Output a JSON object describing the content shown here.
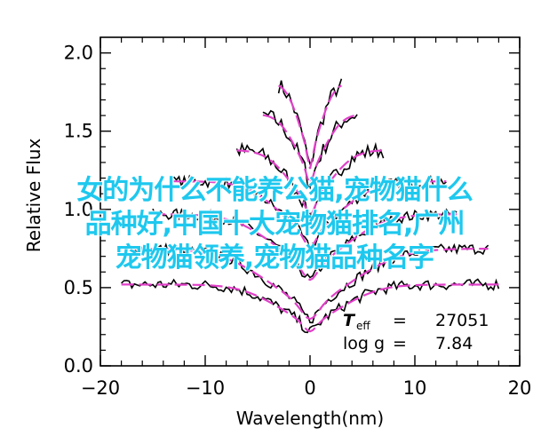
{
  "chart_data": {
    "type": "line",
    "xlabel": "Wavelength(nm)",
    "ylabel": "Relative Flux",
    "xlim": [
      -20,
      20
    ],
    "ylim": [
      0,
      2.1
    ],
    "xticks": [
      "−20",
      "−10",
      "0",
      "10",
      "20"
    ],
    "xtick_values": [
      -20,
      -10,
      0,
      10,
      20
    ],
    "yticks": [
      "0.0",
      "0.5",
      "1.0",
      "1.5",
      "2.0"
    ],
    "ytick_values": [
      0,
      0.5,
      1.0,
      1.5,
      2.0
    ],
    "series_colors": {
      "observed": "#000000",
      "model": "#e040c8"
    },
    "profiles": [
      {
        "offset": 1.81,
        "xmin": -3.0,
        "xmax": 3.0,
        "depth": 0.55,
        "width": 1.2
      },
      {
        "offset": 1.61,
        "xmin": -4.5,
        "xmax": 4.5,
        "depth": 0.45,
        "width": 1.6
      },
      {
        "offset": 1.38,
        "xmin": -7.0,
        "xmax": 7.0,
        "depth": 0.42,
        "width": 2.2
      },
      {
        "offset": 1.18,
        "xmin": -13.0,
        "xmax": 13.0,
        "depth": 0.42,
        "width": 3.2
      },
      {
        "offset": 0.97,
        "xmin": -15.0,
        "xmax": 14.0,
        "depth": 0.42,
        "width": 3.8
      },
      {
        "offset": 0.75,
        "xmin": -17.0,
        "xmax": 17.0,
        "depth": 0.45,
        "width": 4.5
      },
      {
        "offset": 0.52,
        "xmin": -18.0,
        "xmax": 18.0,
        "depth": 0.3,
        "width": 3.5
      }
    ],
    "annotations": {
      "teff_label": "T",
      "teff_sub": "eff",
      "teff_eq": "=",
      "teff_value": "27051",
      "logg_label": "log g",
      "logg_eq": "=",
      "logg_value": "7.84"
    }
  },
  "watermark": {
    "line1": "女的为什么不能养公猫,宠物猫什么",
    "line2": "品种好,中国十大宠物猫排名,广州",
    "line3": "宠物猫领养,宠物猫品种名字"
  }
}
